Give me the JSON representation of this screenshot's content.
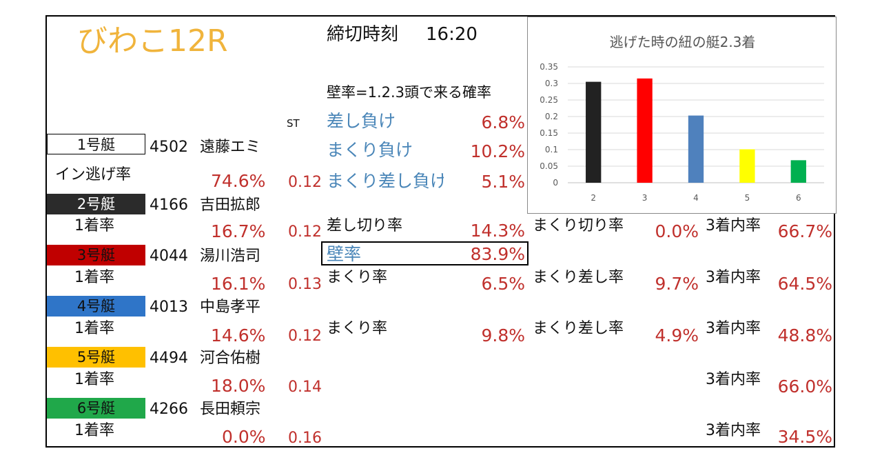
{
  "title": "びわこ12R",
  "deadline": {
    "label": "締切時刻",
    "time": "16:20"
  },
  "kabe_description": "壁率=1.2.3頭で来る確率",
  "st_label": "ST",
  "boat1": {
    "label": "1号艇",
    "number": "4502",
    "name": "遠藤エミ",
    "rate_label": "イン逃げ率",
    "rate": "74.6%",
    "st": "0.12",
    "sashi_make_label": "差し負け",
    "sashi_make": "6.8%",
    "makuri_make_label": "まくり負け",
    "makuri_make": "10.2%",
    "makurisashi_make_label": "まくり差し負け",
    "makurisashi_make": "5.1%"
  },
  "boat2": {
    "label": "2号艇",
    "number": "4166",
    "name": "吉田拡郎",
    "rate_label": "1着率",
    "rate": "16.7%",
    "st": "0.12",
    "a_label": "差し切り率",
    "a_value": "14.3%",
    "b_label": "まくり切り率",
    "b_value": "0.0%",
    "c_label": "3着内率",
    "c_value": "66.7%"
  },
  "kabe": {
    "label": "壁率",
    "value": "83.9%"
  },
  "boat3": {
    "label": "3号艇",
    "number": "4044",
    "name": "湯川浩司",
    "rate_label": "1着率",
    "rate": "16.1%",
    "st": "0.13",
    "a_label": "まくり率",
    "a_value": "6.5%",
    "b_label": "まくり差し率",
    "b_value": "9.7%",
    "c_label": "3着内率",
    "c_value": "64.5%"
  },
  "boat4": {
    "label": "4号艇",
    "number": "4013",
    "name": "中島孝平",
    "rate_label": "1着率",
    "rate": "14.6%",
    "st": "0.12",
    "a_label": "まくり率",
    "a_value": "9.8%",
    "b_label": "まくり差し率",
    "b_value": "4.9%",
    "c_label": "3着内率",
    "c_value": "48.8%"
  },
  "boat5": {
    "label": "5号艇",
    "number": "4494",
    "name": "河合佑樹",
    "rate_label": "1着率",
    "rate": "18.0%",
    "st": "0.14",
    "c_label": "3着内率",
    "c_value": "66.0%"
  },
  "boat6": {
    "label": "6号艇",
    "number": "4266",
    "name": "長田頼宗",
    "rate_label": "1着率",
    "rate": "0.0%",
    "st": "0.16",
    "c_label": "3着内率",
    "c_value": "34.5%"
  },
  "colors": {
    "boat1": "#ffffff",
    "boat2": "#2b2b2b",
    "boat3": "#c00000",
    "boat4": "#2f75c8",
    "boat5": "#ffc000",
    "boat6": "#20a84a",
    "value_red": "#c0302c",
    "label_blue": "#4a86b8",
    "title_gold": "#f0b43c"
  },
  "chart_data": {
    "type": "bar",
    "title": "逃げた時の紐の艇2.3着",
    "categories": [
      "2",
      "3",
      "4",
      "5",
      "6"
    ],
    "values": [
      0.305,
      0.315,
      0.203,
      0.101,
      0.068
    ],
    "bar_colors": [
      "#222222",
      "#ff0000",
      "#4f81bd",
      "#ffff00",
      "#00b050"
    ],
    "yticks": [
      "0",
      "0.05",
      "0.1",
      "0.15",
      "0.2",
      "0.25",
      "0.3",
      "0.35"
    ],
    "ylim": [
      0,
      0.35
    ],
    "grid": true,
    "legend": "none"
  }
}
